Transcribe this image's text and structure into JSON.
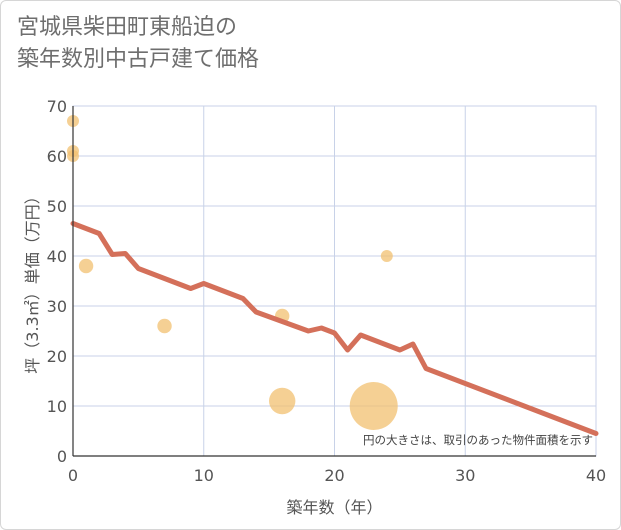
{
  "title_lines": [
    "宮城県柴田町東船迫の",
    "築年数別中古戸建て価格"
  ],
  "chart_data": {
    "type": "scatter",
    "title": "宮城県柴田町東船迫の築年数別中古戸建て価格",
    "xlabel": "築年数（年）",
    "ylabel": "坪（3.3㎡）単価（万円）",
    "xlim": [
      0,
      40
    ],
    "ylim": [
      0,
      70
    ],
    "xticks": [
      0,
      10,
      20,
      30,
      40
    ],
    "yticks": [
      0,
      10,
      20,
      30,
      40,
      50,
      60,
      70
    ],
    "grid": true,
    "note": "円の大きさは、取引のあった物件面積を示す",
    "points": [
      {
        "x": 0,
        "y": 67,
        "size": 1
      },
      {
        "x": 0,
        "y": 61,
        "size": 1
      },
      {
        "x": 0,
        "y": 60,
        "size": 1
      },
      {
        "x": 1,
        "y": 38,
        "size": 1.2
      },
      {
        "x": 7,
        "y": 26,
        "size": 1.2
      },
      {
        "x": 16,
        "y": 28,
        "size": 1.2
      },
      {
        "x": 16,
        "y": 11,
        "size": 2.2
      },
      {
        "x": 23,
        "y": 10,
        "size": 4
      },
      {
        "x": 24,
        "y": 40,
        "size": 1
      }
    ],
    "trend_line": {
      "x": [
        0,
        2,
        3,
        4,
        5,
        9,
        10,
        13,
        14,
        18,
        19,
        20,
        21,
        22,
        25,
        26,
        27,
        40
      ],
      "y": [
        46.5,
        44.5,
        40.3,
        40.5,
        37.5,
        33.5,
        34.5,
        31.5,
        28.8,
        25.0,
        25.6,
        24.6,
        21.2,
        24.2,
        21.2,
        22.4,
        17.5,
        4.5
      ]
    },
    "colors": {
      "points": "#f2c070",
      "line": "#d4705a",
      "grid": "#c8d2e8",
      "axis": "#333333"
    }
  }
}
